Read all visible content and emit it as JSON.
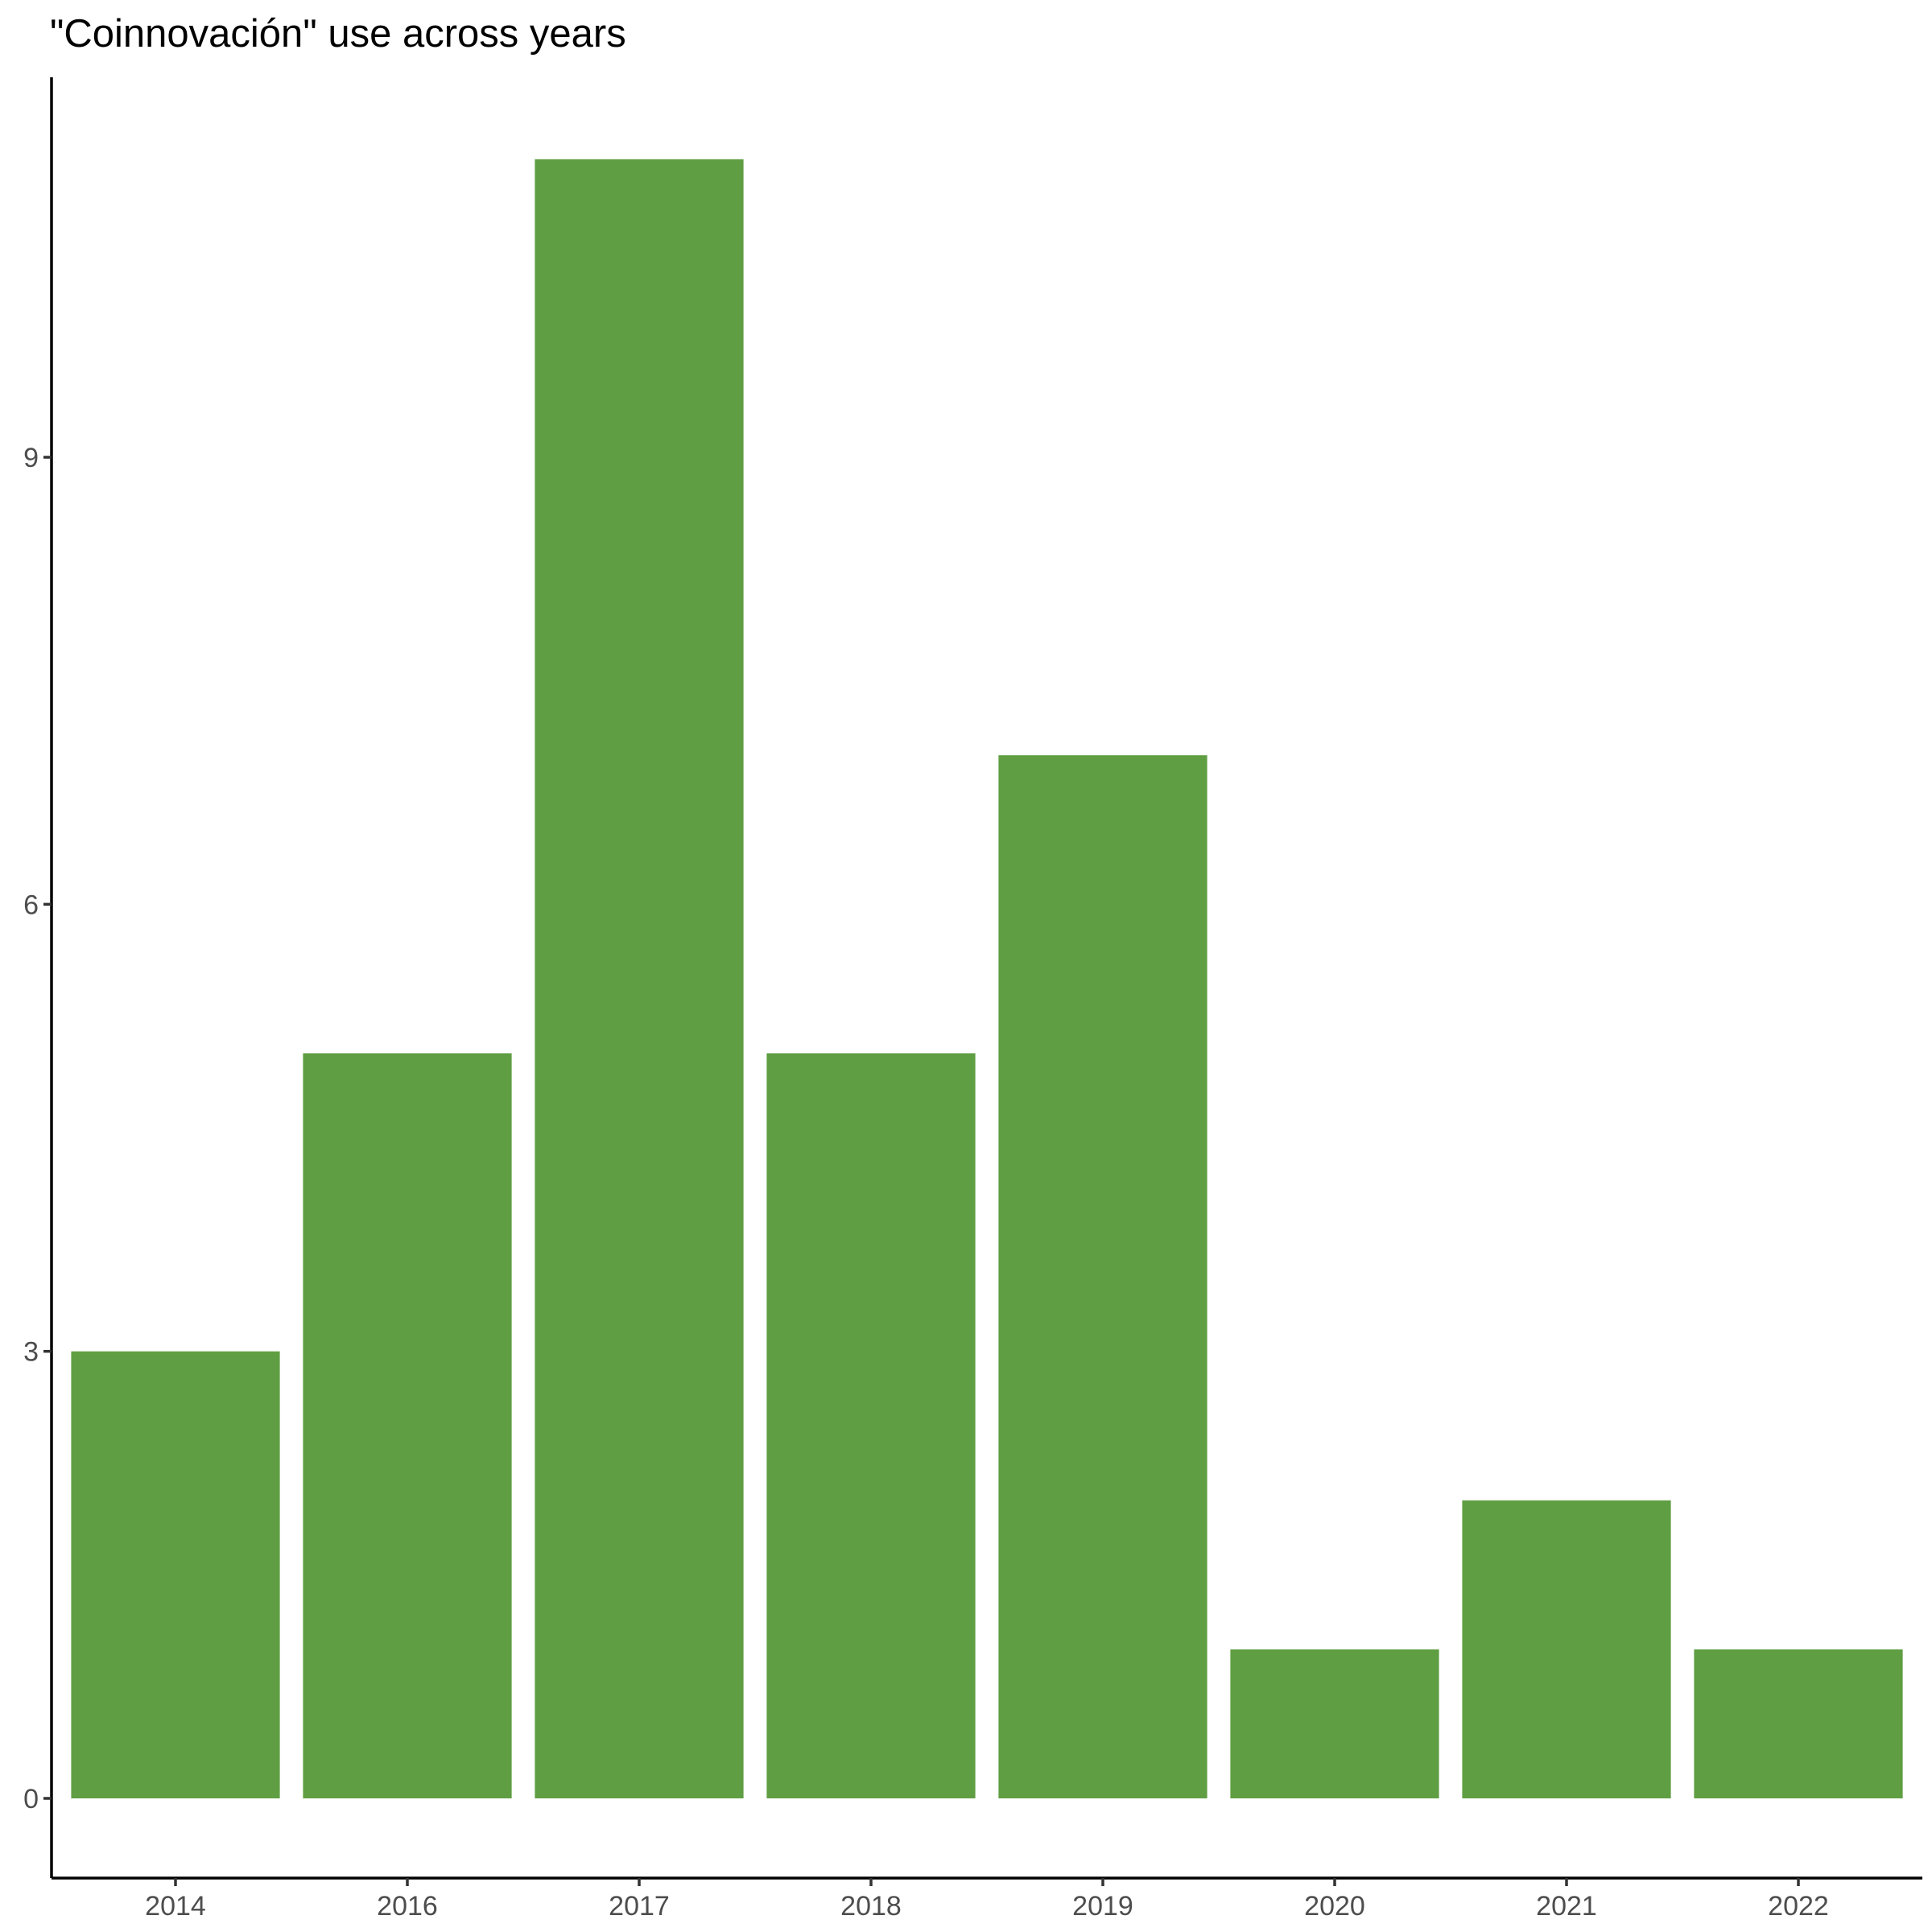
{
  "chart_data": {
    "type": "bar",
    "title": "\"Coinnovación\" use across years",
    "xlabel": "",
    "ylabel": "",
    "categories": [
      "2014",
      "2016",
      "2017",
      "2018",
      "2019",
      "2020",
      "2021",
      "2022"
    ],
    "values": [
      3,
      5,
      11,
      5,
      7,
      1,
      2,
      1
    ],
    "ylim": [
      0,
      11
    ],
    "yticks": [
      "0",
      "3",
      "6",
      "9"
    ],
    "bar_color": "#5f9e42",
    "grid": false,
    "legend": "none"
  }
}
